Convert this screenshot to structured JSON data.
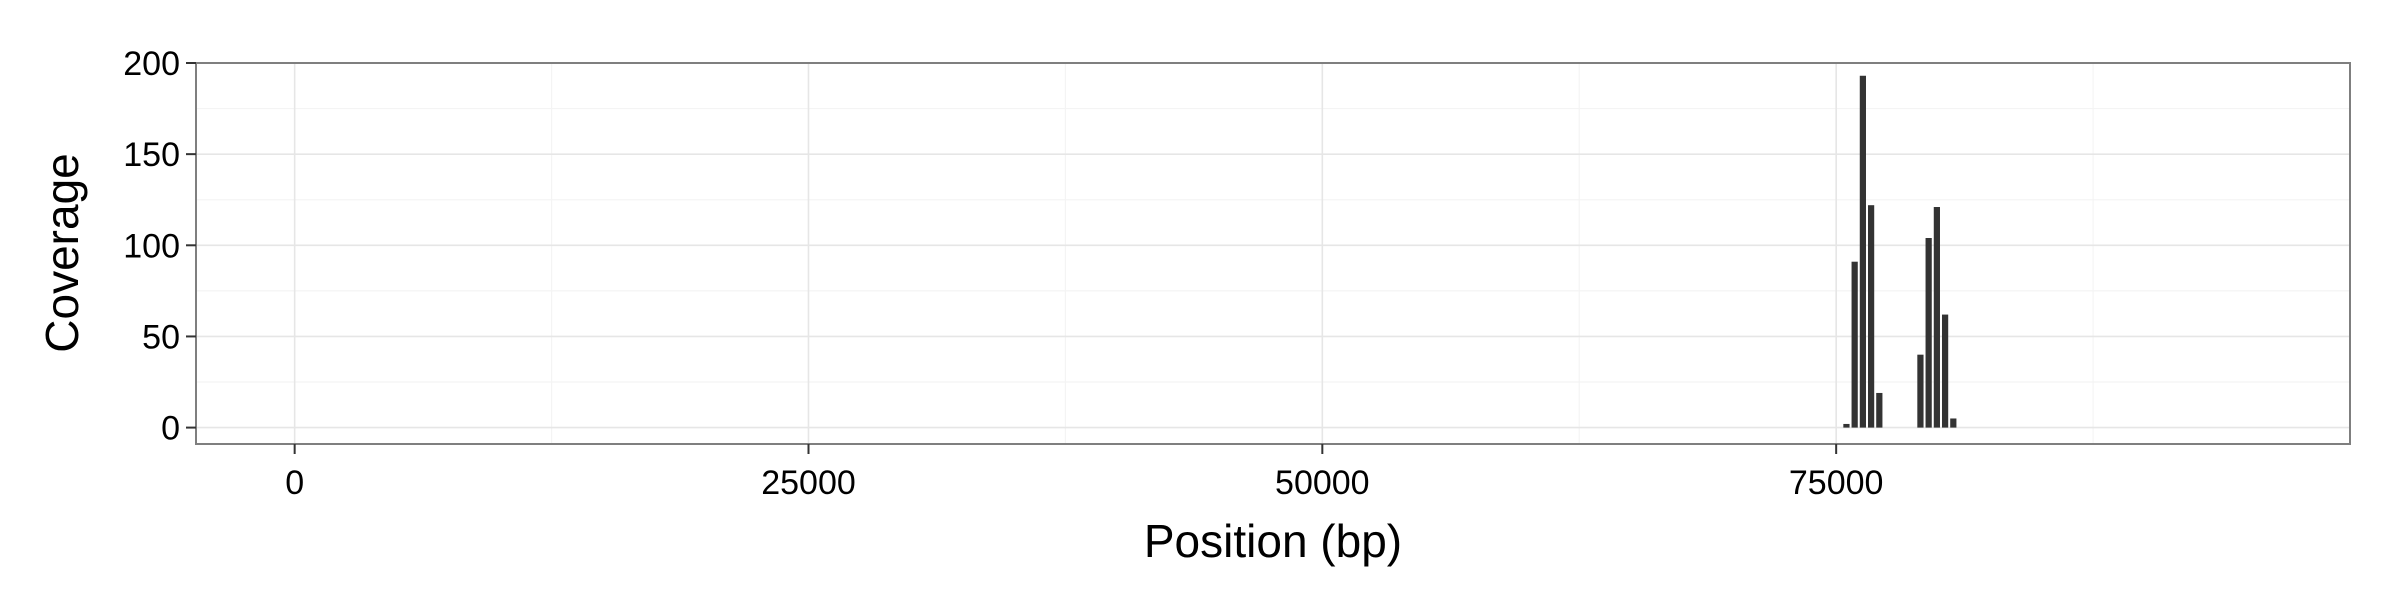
{
  "chart_data": {
    "type": "bar",
    "title": "",
    "xlabel": "Position (bp)",
    "ylabel": "Coverage",
    "xlim": [
      -4800,
      100000
    ],
    "ylim": [
      -9,
      200
    ],
    "x_ticks": [
      0,
      25000,
      50000,
      75000
    ],
    "x_tick_labels": [
      "0",
      "25000",
      "50000",
      "75000"
    ],
    "y_ticks": [
      0,
      50,
      100,
      150,
      200
    ],
    "y_tick_labels": [
      "0",
      "50",
      "100",
      "150",
      "200"
    ],
    "grid": true,
    "legend": "none",
    "bar_width": 400,
    "bar_color": "#333333",
    "series": [
      {
        "x": [
          75500,
          75900,
          76300,
          76700,
          77100,
          79100,
          79500,
          79900,
          80300,
          80700
        ],
        "values": [
          2,
          91,
          193,
          122,
          19,
          40,
          104,
          121,
          62,
          5
        ]
      }
    ]
  }
}
